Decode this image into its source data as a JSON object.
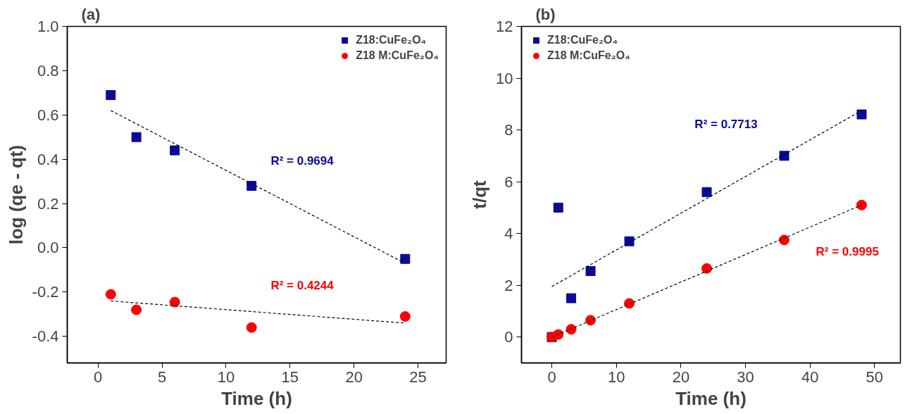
{
  "chart_data": [
    {
      "type": "scatter",
      "title": "(a)",
      "xlabel": "Time (h)",
      "ylabel": "log (qe - qt)",
      "xlim": [
        -2.4,
        27.2
      ],
      "ylim": [
        -0.52,
        1.0
      ],
      "xticks": [
        0,
        5,
        10,
        15,
        20,
        25
      ],
      "yticks": [
        {
          "value": -0.4,
          "label": "-0.4"
        },
        {
          "value": -0.2,
          "label": "-0.2"
        },
        {
          "value": 0,
          "label": "0.0"
        },
        {
          "value": 0.2,
          "label": "0.2"
        },
        {
          "value": 0.4,
          "label": "0.4"
        },
        {
          "value": 0.6,
          "label": "0.6"
        },
        {
          "value": 0.8,
          "label": "0.8"
        },
        {
          "value": 1.0,
          "label": "1.0"
        }
      ],
      "grid": false,
      "legend": "top right",
      "series": [
        {
          "name": "Z18:CuFe₂O₄",
          "color": "#0a0a96",
          "marker": "square",
          "x": [
            1,
            3,
            6,
            12,
            24
          ],
          "values": [
            0.69,
            0.5,
            0.44,
            0.28,
            -0.05
          ]
        },
        {
          "name": "Z18 M:CuFe₂O₄",
          "color": "#ff0000",
          "marker": "circle",
          "x": [
            1,
            3,
            6,
            12,
            24
          ],
          "values": [
            -0.21,
            -0.28,
            -0.245,
            -0.36,
            -0.31
          ]
        },
        {
          "type": "line",
          "color": "#000000",
          "line_style": "dashed",
          "x": [
            1,
            24
          ],
          "values": [
            0.62,
            -0.07
          ]
        },
        {
          "type": "line",
          "color": "#000000",
          "line_style": "dashed",
          "x": [
            1,
            24
          ],
          "values": [
            -0.24,
            -0.34
          ]
        }
      ],
      "annotations": [
        "R² = 0.9694",
        "R² = 0.4244"
      ]
    },
    {
      "type": "scatter",
      "title": "(b)",
      "xlabel": "Time (h)",
      "ylabel": "t/qt",
      "xlim": [
        -4.7,
        54
      ],
      "ylim": [
        -1.0,
        12
      ],
      "xticks": [
        0,
        10,
        20,
        30,
        40,
        50
      ],
      "yticks": [
        0,
        2,
        4,
        6,
        8,
        10,
        12
      ],
      "grid": false,
      "legend": "top left",
      "series": [
        {
          "name": "Z18:CuFe₂O₄",
          "color": "#0a0a96",
          "marker": "square",
          "x": [
            0,
            1,
            3,
            6,
            12,
            24,
            36,
            48
          ],
          "values": [
            0,
            5.0,
            1.5,
            2.55,
            3.7,
            5.6,
            7.0,
            8.6
          ]
        },
        {
          "name": "Z18 M:CuFe₂O₄",
          "color": "#ff0000",
          "marker": "circle",
          "x": [
            0,
            1,
            3,
            6,
            12,
            24,
            36,
            48
          ],
          "values": [
            0,
            0.1,
            0.3,
            0.65,
            1.3,
            2.65,
            3.75,
            5.1
          ]
        },
        {
          "type": "line",
          "color": "#000000",
          "line_style": "dashed",
          "x": [
            0,
            48
          ],
          "values": [
            1.95,
            8.75
          ]
        },
        {
          "type": "line",
          "color": "#000000",
          "line_style": "dashed",
          "x": [
            0,
            48
          ],
          "values": [
            0,
            5.1
          ]
        }
      ],
      "annotations": [
        "R² = 0.7713",
        "R² = 0.9995"
      ]
    }
  ]
}
